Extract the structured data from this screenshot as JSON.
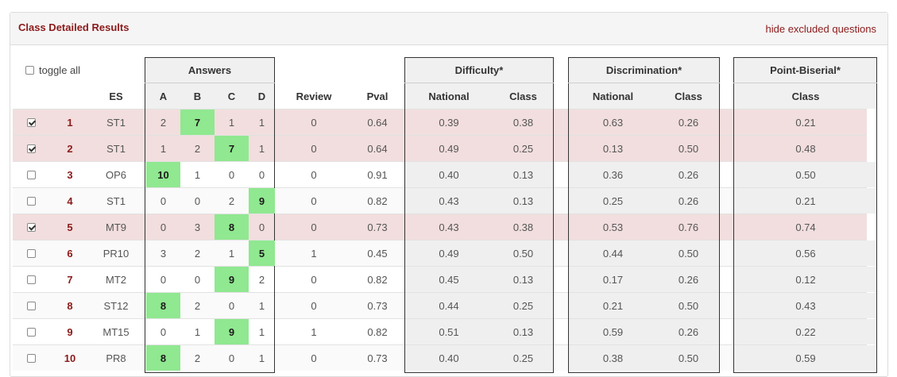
{
  "panel": {
    "title": "Class Detailed Results",
    "hide_link": "hide excluded questions"
  },
  "toggle_all_label": "toggle all",
  "group_headers": {
    "answers": "Answers",
    "difficulty": "Difficulty*",
    "discrimination": "Discrimination*",
    "point_biserial": "Point-Biserial*"
  },
  "column_headers": {
    "es": "ES",
    "a": "A",
    "b": "B",
    "c": "C",
    "d": "D",
    "review": "Review",
    "pval": "Pval",
    "diff_national": "National",
    "diff_class": "Class",
    "disc_national": "National",
    "disc_class": "Class",
    "pb_class": "Class"
  },
  "colors": {
    "title": "#8b1a1a",
    "excluded_row": "#f2dede",
    "correct_answer": "#90e890",
    "stat_bg": "#efefef"
  },
  "rows": [
    {
      "checked": true,
      "num": "1",
      "es": "ST1",
      "a": "2",
      "b": "7",
      "c": "1",
      "d": "1",
      "correct": "b",
      "review": "0",
      "pval": "0.64",
      "diff_national": "0.39",
      "diff_class": "0.38",
      "disc_national": "0.63",
      "disc_class": "0.26",
      "pb_class": "0.21"
    },
    {
      "checked": true,
      "num": "2",
      "es": "ST1",
      "a": "1",
      "b": "2",
      "c": "7",
      "d": "1",
      "correct": "c",
      "review": "0",
      "pval": "0.64",
      "diff_national": "0.49",
      "diff_class": "0.25",
      "disc_national": "0.13",
      "disc_class": "0.50",
      "pb_class": "0.48"
    },
    {
      "checked": false,
      "num": "3",
      "es": "OP6",
      "a": "10",
      "b": "1",
      "c": "0",
      "d": "0",
      "correct": "a",
      "review": "0",
      "pval": "0.91",
      "diff_national": "0.40",
      "diff_class": "0.13",
      "disc_national": "0.36",
      "disc_class": "0.26",
      "pb_class": "0.50"
    },
    {
      "checked": false,
      "num": "4",
      "es": "ST1",
      "a": "0",
      "b": "0",
      "c": "2",
      "d": "9",
      "correct": "d",
      "review": "0",
      "pval": "0.82",
      "diff_national": "0.43",
      "diff_class": "0.13",
      "disc_national": "0.25",
      "disc_class": "0.26",
      "pb_class": "0.21"
    },
    {
      "checked": true,
      "num": "5",
      "es": "MT9",
      "a": "0",
      "b": "3",
      "c": "8",
      "d": "0",
      "correct": "c",
      "review": "0",
      "pval": "0.73",
      "diff_national": "0.43",
      "diff_class": "0.38",
      "disc_national": "0.53",
      "disc_class": "0.76",
      "pb_class": "0.74"
    },
    {
      "checked": false,
      "num": "6",
      "es": "PR10",
      "a": "3",
      "b": "2",
      "c": "1",
      "d": "5",
      "correct": "d",
      "review": "1",
      "pval": "0.45",
      "diff_national": "0.49",
      "diff_class": "0.50",
      "disc_national": "0.44",
      "disc_class": "0.50",
      "pb_class": "0.56"
    },
    {
      "checked": false,
      "num": "7",
      "es": "MT2",
      "a": "0",
      "b": "0",
      "c": "9",
      "d": "2",
      "correct": "c",
      "review": "0",
      "pval": "0.82",
      "diff_national": "0.45",
      "diff_class": "0.13",
      "disc_national": "0.17",
      "disc_class": "0.26",
      "pb_class": "0.12"
    },
    {
      "checked": false,
      "num": "8",
      "es": "ST12",
      "a": "8",
      "b": "2",
      "c": "0",
      "d": "1",
      "correct": "a",
      "review": "0",
      "pval": "0.73",
      "diff_national": "0.44",
      "diff_class": "0.25",
      "disc_national": "0.21",
      "disc_class": "0.50",
      "pb_class": "0.43"
    },
    {
      "checked": false,
      "num": "9",
      "es": "MT15",
      "a": "0",
      "b": "1",
      "c": "9",
      "d": "1",
      "correct": "c",
      "review": "1",
      "pval": "0.82",
      "diff_national": "0.51",
      "diff_class": "0.13",
      "disc_national": "0.59",
      "disc_class": "0.26",
      "pb_class": "0.22"
    },
    {
      "checked": false,
      "num": "10",
      "es": "PR8",
      "a": "8",
      "b": "2",
      "c": "0",
      "d": "1",
      "correct": "a",
      "review": "0",
      "pval": "0.73",
      "diff_national": "0.40",
      "diff_class": "0.25",
      "disc_national": "0.38",
      "disc_class": "0.50",
      "pb_class": "0.59"
    }
  ]
}
